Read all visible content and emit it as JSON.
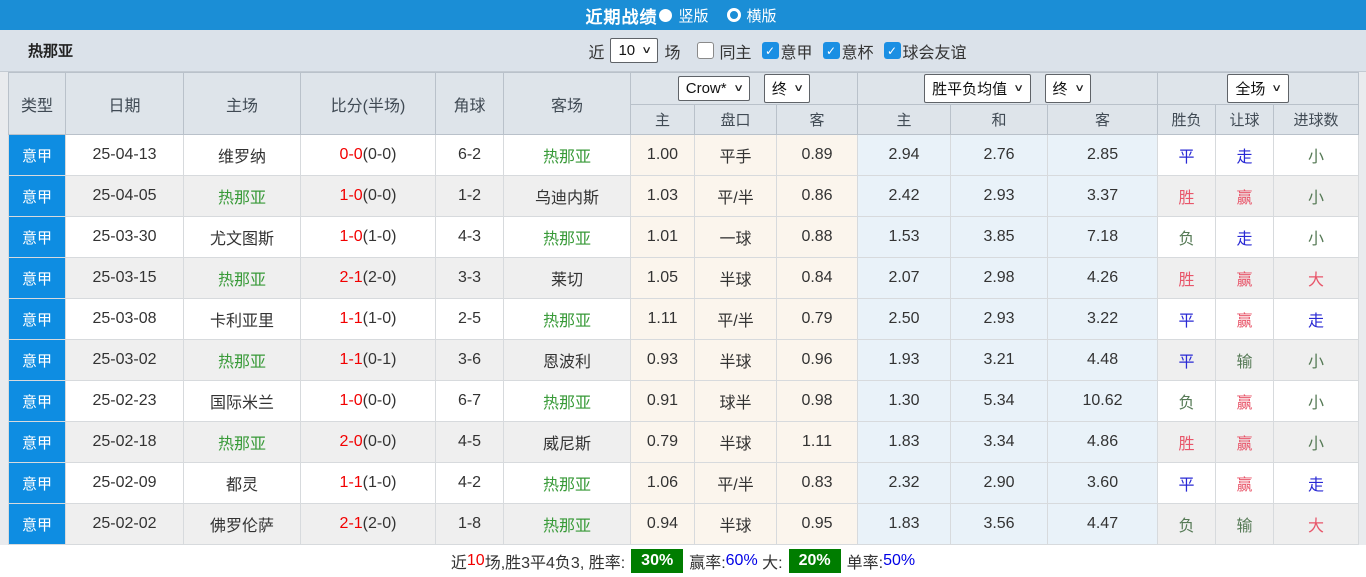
{
  "icons": {
    "chevron_down": "∨",
    "check": "✓",
    "radio_selected": "filled-circle",
    "radio_unselected": "circle-outline"
  },
  "colors": {
    "topbar_blue": "#1b8ed6",
    "league_badge_blue": "#0e8de2",
    "genoa_green": "#389a38",
    "score_red": "#f20000",
    "result_red": "#e8566a",
    "result_blue": "#2929d4",
    "result_green": "#567a56",
    "stat_badge_green": "#007d00",
    "crow_bg": "#fbf5ed",
    "avg_bg": "#e9f2f9"
  },
  "topbar": {
    "title": "近期战绩",
    "radio_options": [
      {
        "label": "竖版",
        "selected": true
      },
      {
        "label": "横版",
        "selected": false
      }
    ]
  },
  "filterbar": {
    "team": "热那亚",
    "near_label": "近",
    "near_value": "10",
    "field_label": "场",
    "checkboxes": [
      {
        "label": "同主",
        "checked": false
      },
      {
        "label": "意甲",
        "checked": true
      },
      {
        "label": "意杯",
        "checked": true
      },
      {
        "label": "球会友谊",
        "checked": true
      }
    ]
  },
  "table": {
    "static_headers": [
      "类型",
      "日期",
      "主场",
      "比分(半场)",
      "角球",
      "客场"
    ],
    "groups": [
      {
        "selects": [
          "Crow*",
          "终"
        ],
        "cols": [
          "主",
          "盘口",
          "客"
        ]
      },
      {
        "selects": [
          "胜平负均值",
          "终"
        ],
        "cols": [
          "主",
          "和",
          "客"
        ]
      },
      {
        "selects": [
          "全场"
        ],
        "cols": [
          "胜负",
          "让球",
          "进球数"
        ]
      }
    ],
    "rows": [
      {
        "league": "意甲",
        "date": "25-04-13",
        "home": "维罗纳",
        "home_focus": false,
        "score": "0-0",
        "half": "(0-0)",
        "corners": "6-2",
        "away": "热那亚",
        "away_focus": true,
        "crow": [
          "1.00",
          "平手",
          "0.89"
        ],
        "avg": [
          "2.94",
          "2.76",
          "2.85"
        ],
        "results": [
          [
            "平",
            "blue"
          ],
          [
            "走",
            "blue"
          ],
          [
            "小",
            "green"
          ]
        ]
      },
      {
        "league": "意甲",
        "date": "25-04-05",
        "home": "热那亚",
        "home_focus": true,
        "score": "1-0",
        "half": "(0-0)",
        "corners": "1-2",
        "away": "乌迪内斯",
        "away_focus": false,
        "crow": [
          "1.03",
          "平/半",
          "0.86"
        ],
        "avg": [
          "2.42",
          "2.93",
          "3.37"
        ],
        "results": [
          [
            "胜",
            "red"
          ],
          [
            "赢",
            "red"
          ],
          [
            "小",
            "green"
          ]
        ]
      },
      {
        "league": "意甲",
        "date": "25-03-30",
        "home": "尤文图斯",
        "home_focus": false,
        "score": "1-0",
        "half": "(1-0)",
        "corners": "4-3",
        "away": "热那亚",
        "away_focus": true,
        "crow": [
          "1.01",
          "一球",
          "0.88"
        ],
        "avg": [
          "1.53",
          "3.85",
          "7.18"
        ],
        "results": [
          [
            "负",
            "green"
          ],
          [
            "走",
            "blue"
          ],
          [
            "小",
            "green"
          ]
        ]
      },
      {
        "league": "意甲",
        "date": "25-03-15",
        "home": "热那亚",
        "home_focus": true,
        "score": "2-1",
        "half": "(2-0)",
        "corners": "3-3",
        "away": "莱切",
        "away_focus": false,
        "crow": [
          "1.05",
          "半球",
          "0.84"
        ],
        "avg": [
          "2.07",
          "2.98",
          "4.26"
        ],
        "results": [
          [
            "胜",
            "red"
          ],
          [
            "赢",
            "red"
          ],
          [
            "大",
            "red"
          ]
        ]
      },
      {
        "league": "意甲",
        "date": "25-03-08",
        "home": "卡利亚里",
        "home_focus": false,
        "score": "1-1",
        "half": "(1-0)",
        "corners": "2-5",
        "away": "热那亚",
        "away_focus": true,
        "crow": [
          "1.11",
          "平/半",
          "0.79"
        ],
        "avg": [
          "2.50",
          "2.93",
          "3.22"
        ],
        "results": [
          [
            "平",
            "blue"
          ],
          [
            "赢",
            "red"
          ],
          [
            "走",
            "blue"
          ]
        ]
      },
      {
        "league": "意甲",
        "date": "25-03-02",
        "home": "热那亚",
        "home_focus": true,
        "score": "1-1",
        "half": "(0-1)",
        "corners": "3-6",
        "away": "恩波利",
        "away_focus": false,
        "crow": [
          "0.93",
          "半球",
          "0.96"
        ],
        "avg": [
          "1.93",
          "3.21",
          "4.48"
        ],
        "results": [
          [
            "平",
            "blue"
          ],
          [
            "输",
            "green"
          ],
          [
            "小",
            "green"
          ]
        ]
      },
      {
        "league": "意甲",
        "date": "25-02-23",
        "home": "国际米兰",
        "home_focus": false,
        "score": "1-0",
        "half": "(0-0)",
        "corners": "6-7",
        "away": "热那亚",
        "away_focus": true,
        "crow": [
          "0.91",
          "球半",
          "0.98"
        ],
        "avg": [
          "1.30",
          "5.34",
          "10.62"
        ],
        "results": [
          [
            "负",
            "green"
          ],
          [
            "赢",
            "red"
          ],
          [
            "小",
            "green"
          ]
        ]
      },
      {
        "league": "意甲",
        "date": "25-02-18",
        "home": "热那亚",
        "home_focus": true,
        "score": "2-0",
        "half": "(0-0)",
        "corners": "4-5",
        "away": "威尼斯",
        "away_focus": false,
        "crow": [
          "0.79",
          "半球",
          "1.11"
        ],
        "avg": [
          "1.83",
          "3.34",
          "4.86"
        ],
        "results": [
          [
            "胜",
            "red"
          ],
          [
            "赢",
            "red"
          ],
          [
            "小",
            "green"
          ]
        ]
      },
      {
        "league": "意甲",
        "date": "25-02-09",
        "home": "都灵",
        "home_focus": false,
        "score": "1-1",
        "half": "(1-0)",
        "corners": "4-2",
        "away": "热那亚",
        "away_focus": true,
        "crow": [
          "1.06",
          "平/半",
          "0.83"
        ],
        "avg": [
          "2.32",
          "2.90",
          "3.60"
        ],
        "results": [
          [
            "平",
            "blue"
          ],
          [
            "赢",
            "red"
          ],
          [
            "走",
            "blue"
          ]
        ]
      },
      {
        "league": "意甲",
        "date": "25-02-02",
        "home": "佛罗伦萨",
        "home_focus": false,
        "score": "2-1",
        "half": "(2-0)",
        "corners": "1-8",
        "away": "热那亚",
        "away_focus": true,
        "crow": [
          "0.94",
          "半球",
          "0.95"
        ],
        "avg": [
          "1.83",
          "3.56",
          "4.47"
        ],
        "results": [
          [
            "负",
            "green"
          ],
          [
            "输",
            "green"
          ],
          [
            "大",
            "red"
          ]
        ]
      }
    ]
  },
  "summary": {
    "segments": [
      {
        "text": "近",
        "style": "plain"
      },
      {
        "text": "10",
        "style": "red"
      },
      {
        "text": "场,胜3平4负3, 胜率:",
        "style": "plain"
      },
      {
        "text": "30%",
        "style": "greenbox"
      },
      {
        "text": "赢率:",
        "style": "plain"
      },
      {
        "text": "60%",
        "style": "blue"
      },
      {
        "text": " 大:",
        "style": "plain"
      },
      {
        "text": "20%",
        "style": "greenbox"
      },
      {
        "text": "单率:",
        "style": "plain"
      },
      {
        "text": "50%",
        "style": "blue"
      }
    ]
  }
}
